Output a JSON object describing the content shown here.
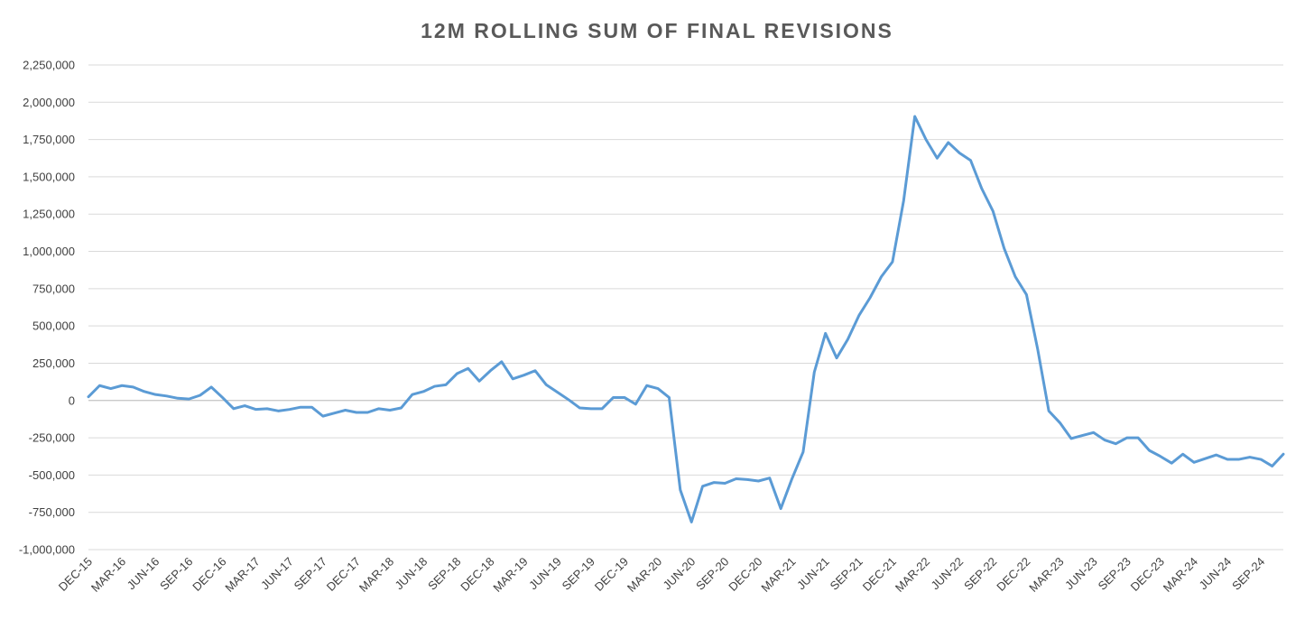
{
  "chart_data": {
    "type": "line",
    "title": "12M ROLLING SUM OF FINAL REVISIONS",
    "xlabel": "",
    "ylabel": "",
    "ylim": [
      -1000000,
      2250000
    ],
    "y_ticks": [
      -1000000,
      -750000,
      -500000,
      -250000,
      0,
      250000,
      500000,
      750000,
      1000000,
      1250000,
      1500000,
      1750000,
      2000000,
      2250000
    ],
    "y_tick_labels": [
      "-1,000,000",
      "-750,000",
      "-500,000",
      "-250,000",
      "0",
      "250,000",
      "500,000",
      "750,000",
      "1,000,000",
      "1,250,000",
      "1,500,000",
      "1,750,000",
      "2,000,000",
      "2,250,000"
    ],
    "x_tick_labels": [
      "DEC-15",
      "MAR-16",
      "JUN-16",
      "SEP-16",
      "DEC-16",
      "MAR-17",
      "JUN-17",
      "SEP-17",
      "DEC-17",
      "MAR-18",
      "JUN-18",
      "SEP-18",
      "DEC-18",
      "MAR-19",
      "JUN-19",
      "SEP-19",
      "DEC-19",
      "MAR-20",
      "JUN-20",
      "SEP-20",
      "DEC-20",
      "MAR-21",
      "JUN-21",
      "SEP-21",
      "DEC-21",
      "MAR-22",
      "JUN-22",
      "SEP-22",
      "DEC-22",
      "MAR-23",
      "JUN-23",
      "SEP-23",
      "DEC-23",
      "MAR-24",
      "JUN-24",
      "SEP-24"
    ],
    "x_tick_every": 3,
    "grid": true,
    "legend": "none",
    "line_color": "#5b9bd5",
    "series": [
      {
        "values": [
          25000,
          100000,
          80000,
          100000,
          90000,
          60000,
          40000,
          30000,
          15000,
          10000,
          35000,
          90000,
          20000,
          -55000,
          -35000,
          -60000,
          -55000,
          -70000,
          -60000,
          -45000,
          -45000,
          -105000,
          -85000,
          -65000,
          -80000,
          -80000,
          -55000,
          -65000,
          -50000,
          40000,
          60000,
          95000,
          105000,
          180000,
          215000,
          130000,
          200000,
          260000,
          145000,
          170000,
          200000,
          105000,
          55000,
          5000,
          -50000,
          -55000,
          -55000,
          20000,
          20000,
          -25000,
          100000,
          80000,
          20000,
          -600000,
          -815000,
          -575000,
          -550000,
          -555000,
          -525000,
          -530000,
          -540000,
          -520000,
          -725000,
          -525000,
          -345000,
          190000,
          450000,
          285000,
          410000,
          570000,
          690000,
          830000,
          930000,
          1340000,
          1905000,
          1750000,
          1625000,
          1730000,
          1660000,
          1610000,
          1420000,
          1270000,
          1020000,
          830000,
          710000,
          345000,
          -70000,
          -150000,
          -255000,
          -235000,
          -215000,
          -265000,
          -290000,
          -250000,
          -250000,
          -335000,
          -375000,
          -420000,
          -360000,
          -415000,
          -390000,
          -365000,
          -395000,
          -395000,
          -380000,
          -395000,
          -440000,
          -360000
        ]
      }
    ]
  }
}
